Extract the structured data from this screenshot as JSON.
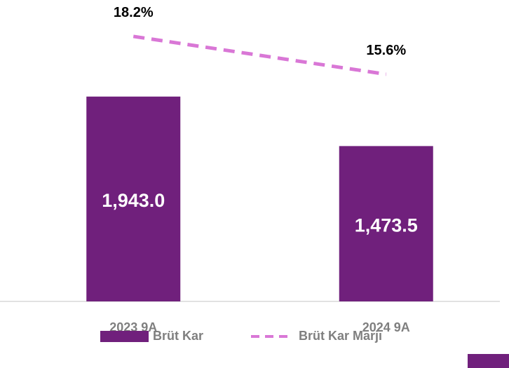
{
  "chart_data": {
    "type": "bar",
    "categories": [
      "2023 9A",
      "2024 9A"
    ],
    "series": [
      {
        "name": "Brüt Kar",
        "type": "bar",
        "color": "#70207c",
        "values": [
          1943.0,
          1473.5
        ],
        "value_labels": [
          "1,943.0",
          "1,473.5"
        ]
      },
      {
        "name": "Brüt Kar Marjı",
        "type": "line",
        "axis": "y2",
        "color": "#d977d6",
        "values": [
          18.2,
          15.6
        ],
        "value_labels": [
          "18.2%",
          "15.6%"
        ]
      }
    ],
    "ylim": [
      0,
      2500
    ],
    "y2lim": [
      0,
      18.1
    ],
    "grid": false,
    "legend": "bottom"
  }
}
